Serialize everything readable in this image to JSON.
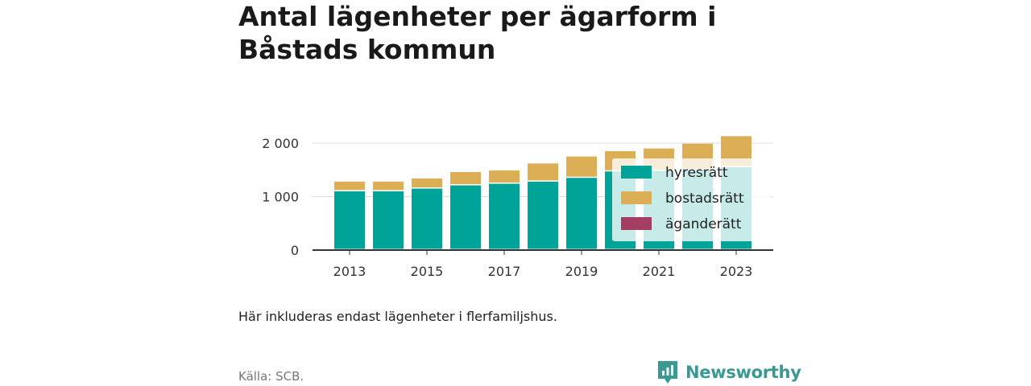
{
  "title": "Antal lägenheter per ägarform i Båstads kommun",
  "note": "Här inkluderas endast lägenheter i flerfamiljshus.",
  "source": "Källa: SCB.",
  "brand": "Newsworthy",
  "colors": {
    "hyresratt": "#00a398",
    "bostadsratt": "#dcae56",
    "aganderatt": "#a33e62",
    "brand": "#3a9a92"
  },
  "chart_data": {
    "type": "bar",
    "stacked": true,
    "categories": [
      "2013",
      "2014",
      "2015",
      "2016",
      "2017",
      "2018",
      "2019",
      "2020",
      "2021",
      "2022",
      "2023"
    ],
    "x_tick_labels": [
      "2013",
      "2015",
      "2017",
      "2019",
      "2021",
      "2023"
    ],
    "y_tick_labels": [
      "0",
      "1 000",
      "2 000"
    ],
    "ylim": [
      0,
      2150
    ],
    "grid": true,
    "legend_position": "right",
    "series": [
      {
        "name": "hyresrätt",
        "values": [
          1100,
          1100,
          1150,
          1210,
          1240,
          1280,
          1350,
          1470,
          1480,
          1500,
          1550
        ]
      },
      {
        "name": "bostadsrätt",
        "values": [
          180,
          180,
          190,
          250,
          250,
          340,
          400,
          380,
          420,
          490,
          580
        ]
      },
      {
        "name": "äganderätt",
        "values": [
          0,
          0,
          0,
          0,
          0,
          0,
          0,
          0,
          0,
          0,
          0
        ]
      }
    ]
  }
}
